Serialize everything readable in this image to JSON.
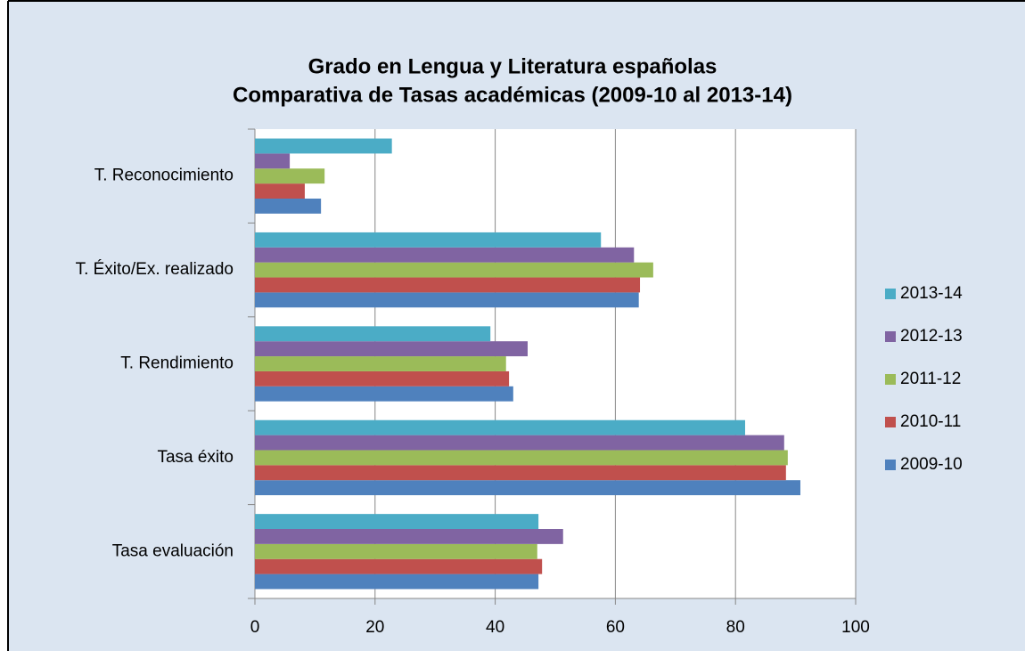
{
  "chart_data": {
    "type": "bar",
    "orientation": "horizontal",
    "title": [
      "Grado en Lengua y Literatura españolas",
      "Comparativa de Tasas académicas (2009-10 al 2013-14)"
    ],
    "categories": [
      "Tasa evaluación",
      "Tasa éxito",
      "T. Rendimiento",
      "T. Éxito/Ex. realizado",
      "T. Reconocimiento"
    ],
    "series": [
      {
        "name": "2009-10",
        "color": "#4f81bd",
        "values": [
          47.2,
          90.8,
          43.0,
          63.9,
          11.0
        ]
      },
      {
        "name": "2010-11",
        "color": "#c0504d",
        "values": [
          47.8,
          88.4,
          42.3,
          64.1,
          8.3
        ]
      },
      {
        "name": "2011-12",
        "color": "#9bbb59",
        "values": [
          47.0,
          88.7,
          41.8,
          66.3,
          11.6
        ]
      },
      {
        "name": "2012-13",
        "color": "#8064a2",
        "values": [
          51.3,
          88.1,
          45.4,
          63.1,
          5.8
        ]
      },
      {
        "name": "2013-14",
        "color": "#4bacc6",
        "values": [
          47.2,
          81.6,
          39.2,
          57.6,
          22.8
        ]
      }
    ],
    "xlim": [
      0,
      100
    ],
    "xticks": [
      0,
      20,
      40,
      60,
      80,
      100
    ],
    "grid": true,
    "legend": "right"
  }
}
